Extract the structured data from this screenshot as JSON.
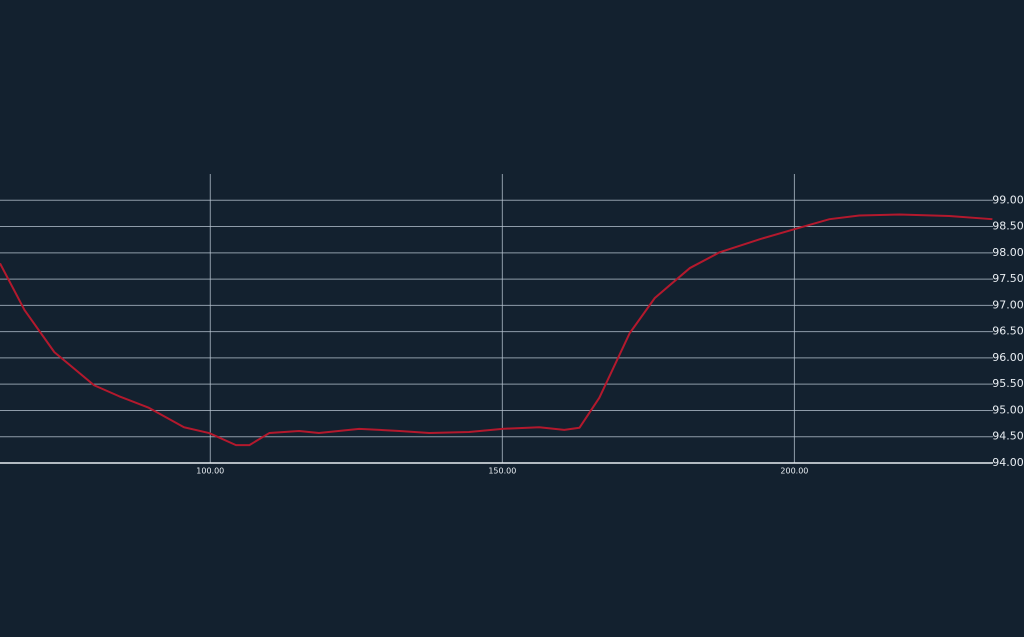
{
  "chart_data": {
    "type": "line",
    "x": [
      64,
      68.2,
      73.3,
      80.1,
      84.4,
      89.5,
      95.5,
      99.8,
      104.4,
      106.7,
      110.1,
      115.2,
      118.6,
      125.5,
      132.4,
      137.5,
      144.3,
      150,
      156.3,
      160.6,
      163.2,
      166.6,
      171.8,
      176.1,
      182.1,
      187.2,
      194.1,
      200,
      206,
      211.1,
      218,
      226.5,
      233.9
    ],
    "series": [
      {
        "color": "#b3192d",
        "values": [
          97.8,
          96.91,
          96.11,
          95.48,
          95.27,
          95.05,
          94.68,
          94.57,
          94.34,
          94.34,
          94.57,
          94.61,
          94.57,
          94.65,
          94.61,
          94.57,
          94.59,
          94.65,
          94.68,
          94.63,
          94.67,
          95.24,
          96.47,
          97.14,
          97.71,
          98.01,
          98.26,
          98.45,
          98.64,
          98.71,
          98.73,
          98.7,
          98.64
        ]
      }
    ],
    "xlim": [
      64,
      234
    ],
    "xticks": [
      {
        "value": 100,
        "label": "100.00"
      },
      {
        "value": 150,
        "label": "150.00"
      },
      {
        "value": 200,
        "label": "200.00"
      }
    ],
    "ylim": [
      94,
      99.5
    ],
    "yticks": [
      {
        "value": 94,
        "label": "94.00"
      },
      {
        "value": 94.5,
        "label": "94.50"
      },
      {
        "value": 95,
        "label": "95.00"
      },
      {
        "value": 95.5,
        "label": "95.50"
      },
      {
        "value": 96,
        "label": "96.00"
      },
      {
        "value": 96.5,
        "label": "96.50"
      },
      {
        "value": 97,
        "label": "97.00"
      },
      {
        "value": 97.5,
        "label": "97.50"
      },
      {
        "value": 98,
        "label": "98.00"
      },
      {
        "value": 98.5,
        "label": "98.50"
      },
      {
        "value": 99,
        "label": "99.00"
      }
    ],
    "grid": true
  }
}
